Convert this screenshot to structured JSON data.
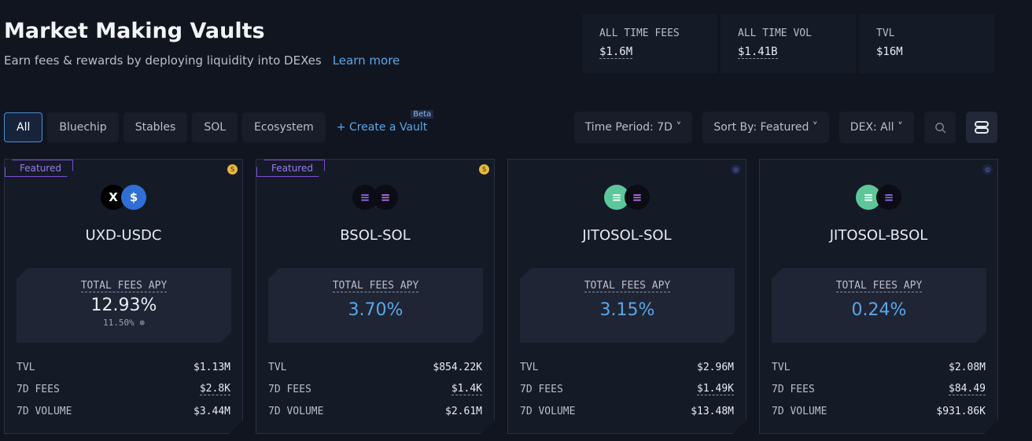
{
  "header": {
    "title": "Market Making Vaults",
    "subtitle": "Earn fees & rewards by deploying liquidity into DEXes",
    "learn_more": "Learn more"
  },
  "stats": [
    {
      "label": "ALL TIME FEES",
      "value": "$1.6M"
    },
    {
      "label": "ALL TIME VOL",
      "value": "$1.41B"
    },
    {
      "label": "TVL",
      "value": "$16M"
    }
  ],
  "tabs": [
    "All",
    "Bluechip",
    "Stables",
    "SOL",
    "Ecosystem"
  ],
  "active_tab": "All",
  "create_vault": {
    "label": "+ Create a Vault",
    "badge": "Beta"
  },
  "filters": {
    "time_period": "Time Period: 7D ˅",
    "sort_by": "Sort By: Featured ˅",
    "dex": "DEX: All ˅"
  },
  "icons": {
    "search": "search-icon",
    "layout": "list-layout-icon"
  },
  "colors": {
    "accent": "#5aa6e8",
    "featured": "#7c4dd6",
    "background": "#111520"
  },
  "vaults": [
    {
      "featured": "Featured",
      "name": "UXD-USDC",
      "apy_label": "TOTAL FEES APY",
      "apy": "12.93%",
      "apy_sub": "11.50%",
      "tvl_label": "TVL",
      "tvl": "$1.13M",
      "fees_label": "7D FEES",
      "fees": "$2.8K",
      "vol_label": "7D VOLUME",
      "vol": "$3.44M"
    },
    {
      "featured": "Featured",
      "name": "BSOL-SOL",
      "apy_label": "TOTAL FEES APY",
      "apy": "3.70%",
      "tvl_label": "TVL",
      "tvl": "$854.22K",
      "fees_label": "7D FEES",
      "fees": "$1.4K",
      "vol_label": "7D VOLUME",
      "vol": "$2.61M"
    },
    {
      "name": "JITOSOL-SOL",
      "apy_label": "TOTAL FEES APY",
      "apy": "3.15%",
      "tvl_label": "TVL",
      "tvl": "$2.96M",
      "fees_label": "7D FEES",
      "fees": "$1.49K",
      "vol_label": "7D VOLUME",
      "vol": "$13.48M"
    },
    {
      "name": "JITOSOL-BSOL",
      "apy_label": "TOTAL FEES APY",
      "apy": "0.24%",
      "tvl_label": "TVL",
      "tvl": "$2.08M",
      "fees_label": "7D FEES",
      "fees": "$84.49",
      "vol_label": "7D VOLUME",
      "vol": "$931.86K"
    }
  ]
}
